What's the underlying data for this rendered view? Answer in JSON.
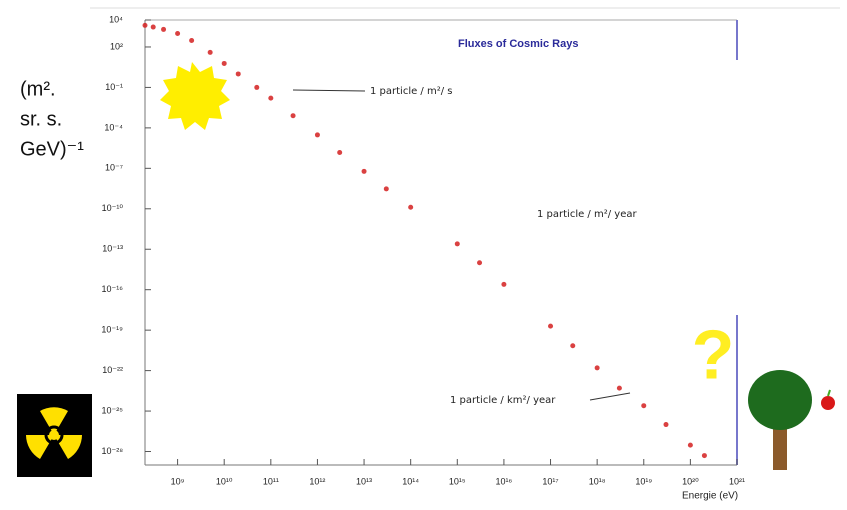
{
  "chart_data": {
    "type": "scatter",
    "title": "Fluxes of Cosmic Rays",
    "xlabel": "Energie (eV)",
    "ylabel": [
      "(m².",
      "sr. s.",
      "GeV)⁻¹"
    ],
    "xscale": "log",
    "yscale": "log",
    "color": "#d42020",
    "x": [
      200000000.0,
      300000000.0,
      500000000.0,
      1000000000.0,
      2000000000.0,
      5000000000.0,
      10000000000.0,
      20000000000.0,
      50000000000.0,
      100000000000.0,
      300000000000.0,
      1000000000000.0,
      3000000000000.0,
      10000000000000.0,
      30000000000000.0,
      100000000000000.0,
      1000000000000000.0,
      3000000000000000.0,
      1e+16,
      1e+17,
      3e+17,
      1e+18,
      3e+18,
      1e+19,
      3e+19,
      1e+20,
      2e+20
    ],
    "values": [
      4000.0,
      3000.0,
      2000.0,
      1000.0,
      300.0,
      40.0,
      6,
      1,
      0.1,
      0.016,
      0.0008,
      3e-05,
      1.5e-06,
      6e-08,
      3e-09,
      1.3e-10,
      2.5e-13,
      1e-14,
      2.5e-16,
      2e-19,
      7e-21,
      1.6e-22,
      5e-24,
      2.5e-25,
      1e-26,
      3e-28,
      5e-29
    ],
    "xlim": [
      200000000.0,
      1e+21
    ],
    "ylim": [
      1e-29,
      10000.0
    ],
    "xticks": [
      {
        "value": 1000000000.0,
        "label": "10⁹"
      },
      {
        "value": 10000000000.0,
        "label": "10¹⁰"
      },
      {
        "value": 100000000000.0,
        "label": "10¹¹"
      },
      {
        "value": 1000000000000.0,
        "label": "10¹²"
      },
      {
        "value": 10000000000000.0,
        "label": "10¹³"
      },
      {
        "value": 100000000000000.0,
        "label": "10¹⁴"
      },
      {
        "value": 1000000000000000.0,
        "label": "10¹⁵"
      },
      {
        "value": 1e+16,
        "label": "10¹⁶"
      },
      {
        "value": 1e+17,
        "label": "10¹⁷"
      },
      {
        "value": 1e+18,
        "label": "10¹⁸"
      },
      {
        "value": 1e+19,
        "label": "10¹⁹"
      },
      {
        "value": 1e+20,
        "label": "10²⁰"
      },
      {
        "value": 1e+21,
        "label": "10²¹"
      }
    ],
    "yticks": [
      {
        "value": 10000.0,
        "label": "10⁴"
      },
      {
        "value": 100.0,
        "label": "10²"
      },
      {
        "value": 0.1,
        "label": "10⁻¹"
      },
      {
        "value": 0.0001,
        "label": "10⁻⁴"
      },
      {
        "value": 1e-07,
        "label": "10⁻⁷"
      },
      {
        "value": 1e-10,
        "label": "10⁻¹⁰"
      },
      {
        "value": 1e-13,
        "label": "10⁻¹³"
      },
      {
        "value": 1e-16,
        "label": "10⁻¹⁶"
      },
      {
        "value": 1e-19,
        "label": "10⁻¹⁹"
      },
      {
        "value": 1e-22,
        "label": "10⁻²²"
      },
      {
        "value": 1e-25,
        "label": "10⁻²⁵"
      },
      {
        "value": 1e-28,
        "label": "10⁻²⁸"
      }
    ],
    "annotations": [
      "1 particle / m²/ s",
      "1 particle / m²/ year",
      "1 particle / km²/ year",
      "?"
    ]
  }
}
